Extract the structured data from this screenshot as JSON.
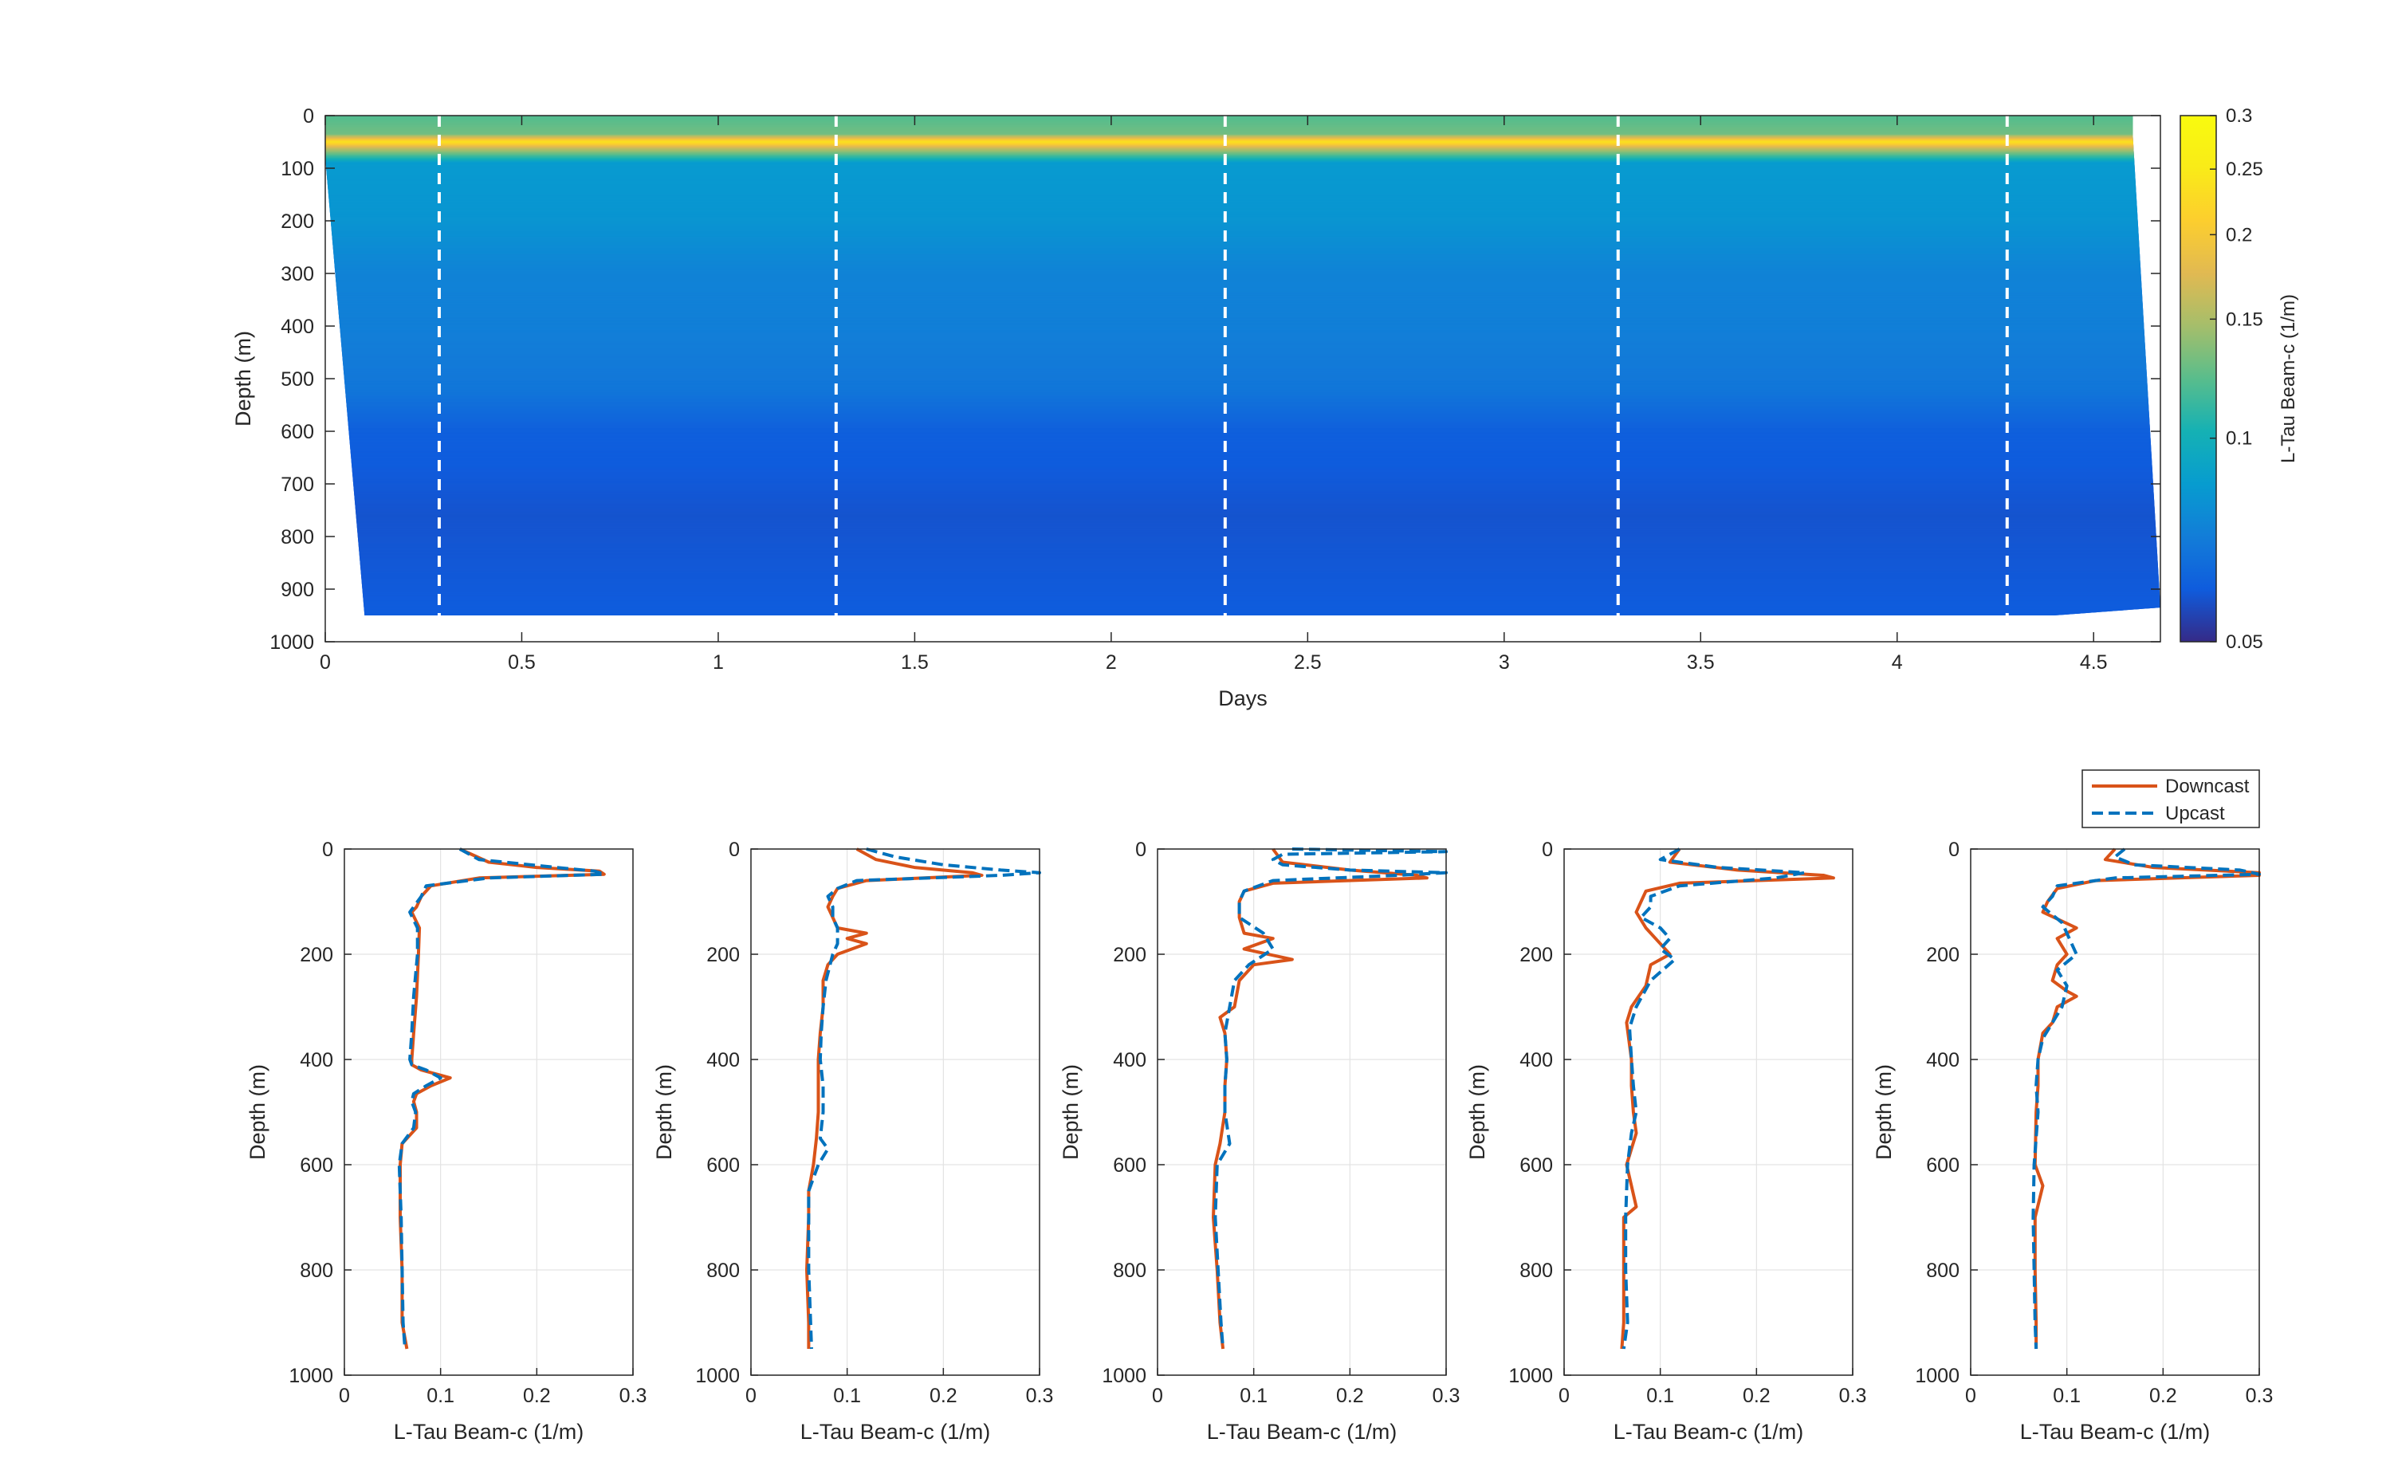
{
  "chart_data": [
    {
      "type": "heatmap",
      "title": "",
      "xlabel": "Days",
      "ylabel": "Depth (m)",
      "xlim": [
        0,
        4.67
      ],
      "ylim": [
        0,
        1000
      ],
      "y_reversed": true,
      "x_ticks": [
        "0",
        "0.5",
        "1",
        "1.5",
        "2",
        "2.5",
        "3",
        "3.5",
        "4",
        "4.5"
      ],
      "y_ticks": [
        "0",
        "100",
        "200",
        "300",
        "400",
        "500",
        "600",
        "700",
        "800",
        "900",
        "1000"
      ],
      "colorbar": {
        "label": "L-Tau Beam-c (1/m)",
        "range": [
          0.05,
          0.3
        ],
        "scale": "log",
        "ticks": [
          "0.05",
          "0.1",
          "0.15",
          "0.2",
          "0.25",
          "0.3"
        ],
        "colormap": "parula"
      },
      "profile_markers_days": [
        0.29,
        1.3,
        2.29,
        3.29,
        4.28
      ],
      "data_outline": {
        "top": [
          [
            0.0,
            0
          ],
          [
            4.6,
            0
          ]
        ],
        "bottom": [
          [
            0.1,
            950
          ],
          [
            4.4,
            950
          ],
          [
            4.67,
            935
          ]
        ],
        "left_edge": [
          [
            0.0,
            80
          ],
          [
            0.1,
            950
          ]
        ],
        "right_edge": [
          [
            4.6,
            40
          ],
          [
            4.67,
            935
          ]
        ]
      },
      "depth_structure": [
        {
          "depth": 0,
          "value": 0.12
        },
        {
          "depth": 35,
          "value": 0.13
        },
        {
          "depth": 50,
          "value": 0.24
        },
        {
          "depth": 62,
          "value": 0.16
        },
        {
          "depth": 90,
          "value": 0.085
        },
        {
          "depth": 200,
          "value": 0.082
        },
        {
          "depth": 300,
          "value": 0.074
        },
        {
          "depth": 420,
          "value": 0.072
        },
        {
          "depth": 520,
          "value": 0.069
        },
        {
          "depth": 600,
          "value": 0.061
        },
        {
          "depth": 760,
          "value": 0.058
        },
        {
          "depth": 950,
          "value": 0.06
        }
      ]
    },
    {
      "type": "line",
      "xlabel": "L-Tau Beam-c (1/m)",
      "ylabel": "Depth (m)",
      "xlim": [
        0,
        0.3
      ],
      "ylim": [
        0,
        1000
      ],
      "y_reversed": true,
      "x_ticks": [
        "0",
        "0.1",
        "0.2",
        "0.3"
      ],
      "y_ticks": [
        "0",
        "200",
        "400",
        "600",
        "800",
        "1000"
      ],
      "grid": true,
      "series": [
        {
          "name": "Downcast",
          "color": "#D95319",
          "style": "solid",
          "depth": [
            0,
            25,
            35,
            42,
            48,
            55,
            70,
            90,
            110,
            120,
            150,
            200,
            280,
            350,
            400,
            410,
            420,
            435,
            450,
            465,
            480,
            500,
            530,
            560,
            600,
            700,
            800,
            900,
            950
          ],
          "values": [
            0.12,
            0.15,
            0.2,
            0.265,
            0.27,
            0.14,
            0.09,
            0.08,
            0.075,
            0.07,
            0.078,
            0.077,
            0.075,
            0.072,
            0.07,
            0.07,
            0.08,
            0.11,
            0.09,
            0.075,
            0.072,
            0.075,
            0.075,
            0.06,
            0.058,
            0.058,
            0.06,
            0.06,
            0.065
          ]
        },
        {
          "name": "Upcast",
          "color": "#0072BD",
          "style": "dashed",
          "depth": [
            0,
            20,
            35,
            42,
            48,
            55,
            70,
            90,
            110,
            120,
            150,
            200,
            280,
            350,
            400,
            410,
            420,
            435,
            450,
            465,
            480,
            500,
            530,
            560,
            600,
            700,
            800,
            900,
            950
          ],
          "values": [
            0.12,
            0.14,
            0.22,
            0.26,
            0.27,
            0.15,
            0.085,
            0.08,
            0.072,
            0.068,
            0.076,
            0.076,
            0.072,
            0.07,
            0.068,
            0.07,
            0.085,
            0.1,
            0.085,
            0.072,
            0.07,
            0.074,
            0.072,
            0.06,
            0.057,
            0.059,
            0.06,
            0.061,
            0.063
          ]
        }
      ]
    },
    {
      "type": "line",
      "xlabel": "L-Tau Beam-c (1/m)",
      "ylabel": "Depth (m)",
      "xlim": [
        0,
        0.3
      ],
      "ylim": [
        0,
        1000
      ],
      "y_reversed": true,
      "x_ticks": [
        "0",
        "0.1",
        "0.2",
        "0.3"
      ],
      "y_ticks": [
        "0",
        "200",
        "400",
        "600",
        "800",
        "1000"
      ],
      "grid": true,
      "series": [
        {
          "name": "Downcast",
          "color": "#D95319",
          "style": "solid",
          "depth": [
            0,
            20,
            35,
            45,
            50,
            60,
            75,
            90,
            110,
            130,
            150,
            160,
            170,
            180,
            200,
            220,
            250,
            300,
            350,
            400,
            450,
            500,
            550,
            600,
            650,
            700,
            800,
            900,
            950
          ],
          "values": [
            0.11,
            0.13,
            0.17,
            0.23,
            0.24,
            0.12,
            0.09,
            0.085,
            0.08,
            0.085,
            0.09,
            0.12,
            0.1,
            0.12,
            0.09,
            0.08,
            0.075,
            0.075,
            0.072,
            0.07,
            0.07,
            0.07,
            0.068,
            0.065,
            0.06,
            0.06,
            0.058,
            0.06,
            0.06
          ]
        },
        {
          "name": "Upcast",
          "color": "#0072BD",
          "style": "dashed",
          "depth": [
            0,
            15,
            30,
            40,
            45,
            50,
            60,
            75,
            90,
            110,
            130,
            150,
            180,
            200,
            250,
            300,
            350,
            400,
            450,
            500,
            550,
            570,
            600,
            650,
            700,
            800,
            900,
            950
          ],
          "values": [
            0.12,
            0.15,
            0.2,
            0.26,
            0.3,
            0.26,
            0.11,
            0.09,
            0.08,
            0.085,
            0.085,
            0.09,
            0.09,
            0.085,
            0.078,
            0.075,
            0.073,
            0.072,
            0.075,
            0.075,
            0.072,
            0.08,
            0.07,
            0.06,
            0.06,
            0.06,
            0.062,
            0.063
          ]
        }
      ]
    },
    {
      "type": "line",
      "xlabel": "L-Tau Beam-c (1/m)",
      "ylabel": "Depth (m)",
      "xlim": [
        0,
        0.3
      ],
      "ylim": [
        0,
        1000
      ],
      "y_reversed": true,
      "x_ticks": [
        "0",
        "0.1",
        "0.2",
        "0.3"
      ],
      "y_ticks": [
        "0",
        "200",
        "400",
        "600",
        "800",
        "1000"
      ],
      "grid": true,
      "series": [
        {
          "name": "Downcast",
          "color": "#D95319",
          "style": "solid",
          "depth": [
            0,
            25,
            40,
            50,
            55,
            65,
            80,
            100,
            130,
            160,
            170,
            190,
            210,
            220,
            250,
            300,
            320,
            350,
            400,
            450,
            500,
            560,
            600,
            700,
            800,
            900,
            950
          ],
          "values": [
            0.12,
            0.13,
            0.2,
            0.27,
            0.28,
            0.12,
            0.09,
            0.085,
            0.085,
            0.09,
            0.12,
            0.09,
            0.14,
            0.1,
            0.085,
            0.08,
            0.065,
            0.07,
            0.072,
            0.07,
            0.07,
            0.065,
            0.06,
            0.058,
            0.062,
            0.065,
            0.068
          ]
        },
        {
          "name": "Upcast",
          "color": "#0072BD",
          "style": "dashed",
          "depth": [
            0,
            5,
            10,
            20,
            30,
            40,
            45,
            50,
            60,
            80,
            100,
            130,
            160,
            190,
            220,
            250,
            300,
            350,
            400,
            450,
            500,
            560,
            600,
            700,
            800,
            900,
            950
          ],
          "values": [
            0.14,
            0.3,
            0.13,
            0.12,
            0.13,
            0.2,
            0.3,
            0.25,
            0.12,
            0.09,
            0.085,
            0.085,
            0.11,
            0.12,
            0.095,
            0.08,
            0.075,
            0.07,
            0.072,
            0.07,
            0.07,
            0.075,
            0.062,
            0.06,
            0.063,
            0.066,
            0.068
          ]
        }
      ]
    },
    {
      "type": "line",
      "xlabel": "L-Tau Beam-c (1/m)",
      "ylabel": "Depth (m)",
      "xlim": [
        0,
        0.3
      ],
      "ylim": [
        0,
        1000
      ],
      "y_reversed": true,
      "x_ticks": [
        "0",
        "0.1",
        "0.2",
        "0.3"
      ],
      "y_ticks": [
        "0",
        "200",
        "400",
        "600",
        "800",
        "1000"
      ],
      "grid": true,
      "series": [
        {
          "name": "Downcast",
          "color": "#D95319",
          "style": "solid",
          "depth": [
            0,
            25,
            40,
            50,
            55,
            65,
            80,
            100,
            120,
            150,
            180,
            200,
            220,
            260,
            300,
            330,
            400,
            450,
            500,
            540,
            600,
            680,
            700,
            800,
            900,
            950
          ],
          "values": [
            0.12,
            0.11,
            0.18,
            0.27,
            0.28,
            0.12,
            0.085,
            0.08,
            0.075,
            0.085,
            0.1,
            0.11,
            0.09,
            0.085,
            0.07,
            0.065,
            0.07,
            0.07,
            0.072,
            0.075,
            0.065,
            0.075,
            0.062,
            0.062,
            0.062,
            0.06
          ]
        },
        {
          "name": "Upcast",
          "color": "#0072BD",
          "style": "dashed",
          "depth": [
            0,
            20,
            35,
            45,
            55,
            70,
            90,
            110,
            130,
            150,
            170,
            190,
            210,
            250,
            300,
            340,
            400,
            450,
            500,
            540,
            600,
            700,
            800,
            900,
            950
          ],
          "values": [
            0.12,
            0.1,
            0.16,
            0.25,
            0.22,
            0.12,
            0.09,
            0.09,
            0.08,
            0.1,
            0.11,
            0.1,
            0.115,
            0.09,
            0.075,
            0.068,
            0.07,
            0.072,
            0.075,
            0.07,
            0.066,
            0.064,
            0.064,
            0.066,
            0.062
          ]
        }
      ]
    },
    {
      "type": "line",
      "xlabel": "L-Tau Beam-c (1/m)",
      "ylabel": "Depth (m)",
      "xlim": [
        0,
        0.3
      ],
      "ylim": [
        0,
        1000
      ],
      "y_reversed": true,
      "x_ticks": [
        "0",
        "0.1",
        "0.2",
        "0.3"
      ],
      "y_ticks": [
        "0",
        "200",
        "400",
        "600",
        "800",
        "1000"
      ],
      "grid": true,
      "legend": {
        "entries": [
          "Downcast",
          "Upcast"
        ],
        "placement": "top-right"
      },
      "series": [
        {
          "name": "Downcast",
          "color": "#D95319",
          "style": "solid",
          "depth": [
            0,
            20,
            35,
            45,
            50,
            60,
            75,
            100,
            120,
            150,
            170,
            200,
            220,
            250,
            270,
            280,
            300,
            330,
            350,
            400,
            450,
            500,
            600,
            640,
            700,
            800,
            900,
            950
          ],
          "values": [
            0.15,
            0.14,
            0.19,
            0.3,
            0.3,
            0.13,
            0.09,
            0.08,
            0.075,
            0.11,
            0.09,
            0.1,
            0.09,
            0.085,
            0.1,
            0.11,
            0.09,
            0.085,
            0.075,
            0.07,
            0.07,
            0.068,
            0.067,
            0.075,
            0.067,
            0.067,
            0.068,
            0.068
          ]
        },
        {
          "name": "Upcast",
          "color": "#0072BD",
          "style": "dashed",
          "depth": [
            0,
            15,
            30,
            40,
            48,
            55,
            70,
            90,
            110,
            140,
            160,
            180,
            200,
            230,
            260,
            300,
            330,
            360,
            400,
            450,
            500,
            600,
            700,
            800,
            900,
            950
          ],
          "values": [
            0.16,
            0.15,
            0.17,
            0.28,
            0.3,
            0.15,
            0.09,
            0.085,
            0.075,
            0.095,
            0.1,
            0.105,
            0.11,
            0.09,
            0.1,
            0.095,
            0.085,
            0.075,
            0.07,
            0.068,
            0.07,
            0.066,
            0.065,
            0.066,
            0.067,
            0.068
          ]
        }
      ]
    }
  ]
}
